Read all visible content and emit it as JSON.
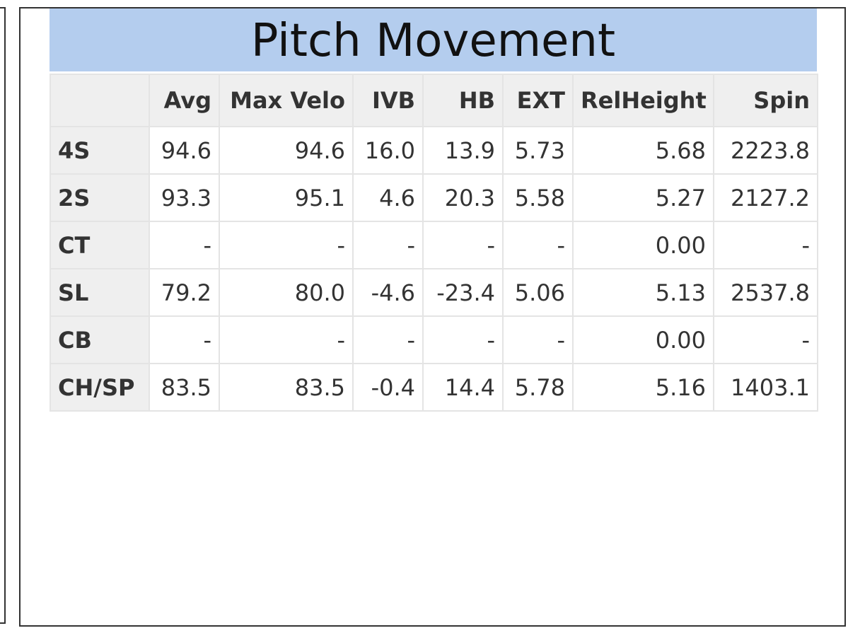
{
  "header": {
    "title": "Pitch Movement"
  },
  "table": {
    "columns": [
      "",
      "Avg",
      "Max Velo",
      "IVB",
      "HB",
      "EXT",
      "RelHeight",
      "Spin"
    ],
    "rows": [
      [
        "4S",
        "94.6",
        "94.6",
        "16.0",
        "13.9",
        "5.73",
        "5.68",
        "2223.8"
      ],
      [
        "2S",
        "93.3",
        "95.1",
        "4.6",
        "20.3",
        "5.58",
        "5.27",
        "2127.2"
      ],
      [
        "CT",
        "-",
        "-",
        "-",
        "-",
        "-",
        "0.00",
        "-"
      ],
      [
        "SL",
        "79.2",
        "80.0",
        "-4.6",
        "-23.4",
        "5.06",
        "5.13",
        "2537.8"
      ],
      [
        "CB",
        "-",
        "-",
        "-",
        "-",
        "-",
        "0.00",
        "-"
      ],
      [
        "CH/SP",
        "83.5",
        "83.5",
        "-0.4",
        "14.4",
        "5.78",
        "5.16",
        "1403.1"
      ]
    ]
  }
}
